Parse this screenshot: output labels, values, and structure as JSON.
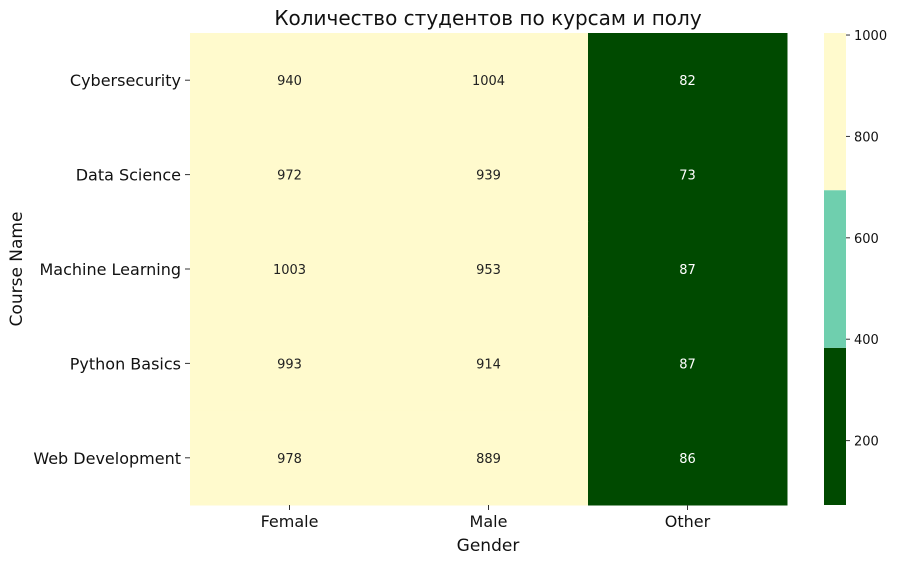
{
  "chart_data": {
    "type": "heatmap",
    "title": "Количество студентов по курсам и полу",
    "xlabel": "Gender",
    "ylabel": "Course Name",
    "x_categories": [
      "Female",
      "Male",
      "Other"
    ],
    "y_categories": [
      "Cybersecurity",
      "Data Science",
      "Machine Learning",
      "Python Basics",
      "Web Development"
    ],
    "values": [
      [
        940,
        1004,
        82
      ],
      [
        972,
        939,
        73
      ],
      [
        1003,
        953,
        87
      ],
      [
        993,
        914,
        87
      ],
      [
        978,
        889,
        86
      ]
    ],
    "colorbar": {
      "range": [
        73,
        1004
      ],
      "ticks": [
        200,
        400,
        600,
        800,
        1000
      ],
      "bins": [
        {
          "from": 73,
          "to": 383,
          "color": "#004a00"
        },
        {
          "from": 383,
          "to": 694,
          "color": "#6fcfae"
        },
        {
          "from": 694,
          "to": 1004,
          "color": "#fffacd"
        }
      ]
    },
    "annotation_text_colors": {
      "light": "#222222",
      "dark": "#ffffff"
    }
  }
}
